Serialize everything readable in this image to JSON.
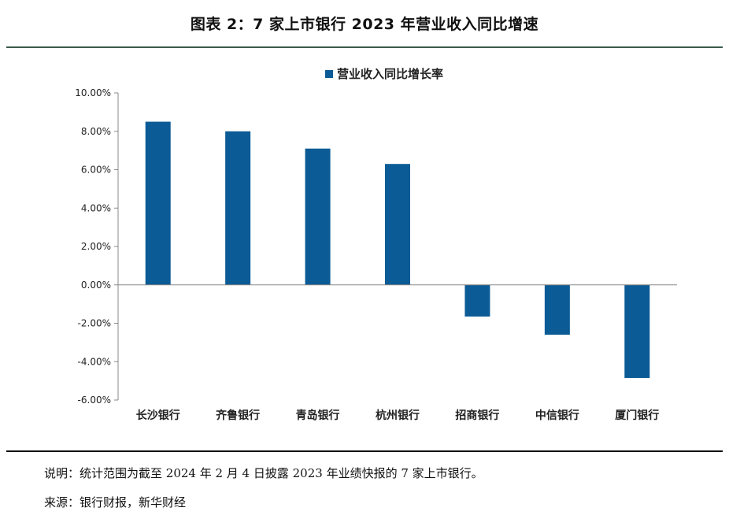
{
  "header": {
    "title": "图表 2：7 家上市银行 2023 年营业收入同比增速"
  },
  "notes": {
    "explanation": "说明：统计范围为截至 2024 年 2 月 4 日披露 2023 年业绩快报的 7 家上市银行。",
    "source": "来源：银行财报，新华财经"
  },
  "chart_data": {
    "type": "bar",
    "title": "",
    "legend": {
      "position": "top-center"
    },
    "categories": [
      "长沙银行",
      "齐鲁银行",
      "青岛银行",
      "杭州银行",
      "招商银行",
      "中信银行",
      "厦门银行"
    ],
    "series": [
      {
        "name": "营业收入同比增长率",
        "color": "#0b5b96",
        "values": [
          8.5,
          8.0,
          7.1,
          6.3,
          -1.65,
          -2.6,
          -4.85
        ]
      }
    ],
    "ylim": [
      -6,
      10
    ],
    "yticks": [
      10,
      8,
      6,
      4,
      2,
      0,
      -2,
      -4,
      -6
    ],
    "ytick_labels": [
      "10.00%",
      "8.00%",
      "6.00%",
      "4.00%",
      "2.00%",
      "0.00%",
      "-2.00%",
      "-4.00%",
      "-6.00%"
    ],
    "grid": false,
    "xlabel": "",
    "ylabel": ""
  }
}
